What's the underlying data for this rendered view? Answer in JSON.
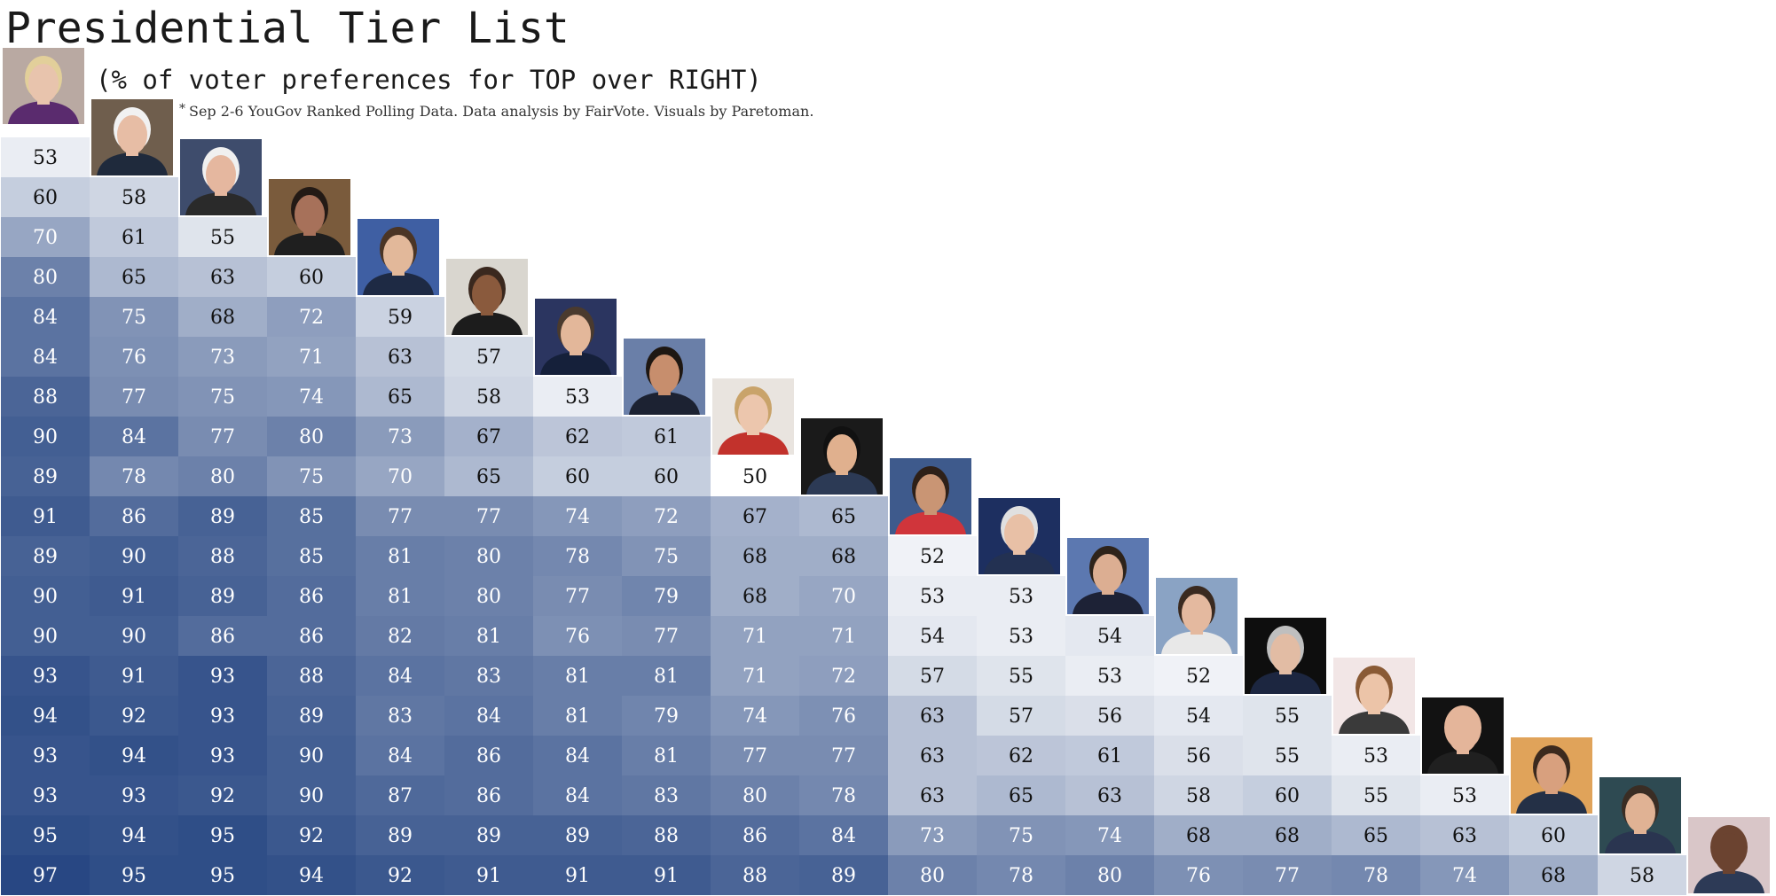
{
  "chart_data": {
    "type": "heatmap",
    "title": "Presidential Tier List",
    "subtitle": "(% of voter preferences for TOP over RIGHT)",
    "note": "Sep 2-6 YouGov Ranked Polling Data. Data analysis by FairVote. Visuals by Paretoman.",
    "note_marker": "*",
    "value_range": [
      50,
      100
    ],
    "color_scale": {
      "low": "#ffffff",
      "high": "#1c3d7c"
    },
    "label_colors": {
      "dark_bg": "#ffffff",
      "light_bg": "#111111"
    },
    "candidate_photos": [
      {
        "name": "candidate-1-photo",
        "bg": "#b9a9a2",
        "skin": "#e8c4ad",
        "hair": "#e2cf9a",
        "shirt": "#5a2b6e"
      },
      {
        "name": "candidate-2-photo",
        "bg": "#6f5e4d",
        "skin": "#e7bda5",
        "hair": "#f1f1f1",
        "shirt": "#1f2a3c"
      },
      {
        "name": "candidate-3-photo",
        "bg": "#3e4c6c",
        "skin": "#e5b79f",
        "hair": "#f0f0f0",
        "shirt": "#2a2a2a"
      },
      {
        "name": "candidate-4-photo",
        "bg": "#7a5b3c",
        "skin": "#a7715a",
        "hair": "#231a15",
        "shirt": "#1f1f1f"
      },
      {
        "name": "candidate-5-photo",
        "bg": "#3f5fa3",
        "skin": "#e2b89a",
        "hair": "#4b3525",
        "shirt": "#1e2a44"
      },
      {
        "name": "candidate-6-photo",
        "bg": "#d9d6cf",
        "skin": "#8a5a3d",
        "hair": "#3a281e",
        "shirt": "#1c1c1c"
      },
      {
        "name": "candidate-7-photo",
        "bg": "#2b3560",
        "skin": "#e3b79a",
        "hair": "#4a3a2e",
        "shirt": "#15203a"
      },
      {
        "name": "candidate-8-photo",
        "bg": "#6a7fa8",
        "skin": "#c78e6d",
        "hair": "#1e1712",
        "shirt": "#1c2232"
      },
      {
        "name": "candidate-9-photo",
        "bg": "#e9e4df",
        "skin": "#ecc6ad",
        "hair": "#c9a36a",
        "shirt": "#c2322c"
      },
      {
        "name": "candidate-10-photo",
        "bg": "#1a1a1a",
        "skin": "#e0b08e",
        "hair": "#111111",
        "shirt": "#2c3a55"
      },
      {
        "name": "candidate-11-photo",
        "bg": "#3e5a8c",
        "skin": "#c99574",
        "hair": "#2e2018",
        "shirt": "#d0353b"
      },
      {
        "name": "candidate-12-photo",
        "bg": "#1d2f60",
        "skin": "#e8c0a6",
        "hair": "#e0e0e0",
        "shirt": "#233152"
      },
      {
        "name": "candidate-13-photo",
        "bg": "#5c78b0",
        "skin": "#dcae92",
        "hair": "#2e231a",
        "shirt": "#1d2236"
      },
      {
        "name": "candidate-14-photo",
        "bg": "#8aa3c4",
        "skin": "#e4b99f",
        "hair": "#3a2a20",
        "shirt": "#e8e8e8"
      },
      {
        "name": "candidate-15-photo",
        "bg": "#0e0e0e",
        "skin": "#e2bca4",
        "hair": "#bfbfbf",
        "shirt": "#1c2640"
      },
      {
        "name": "candidate-16-photo",
        "bg": "#f2e6e6",
        "skin": "#ecc4a8",
        "hair": "#8a5a35",
        "shirt": "#3a3a3a"
      },
      {
        "name": "candidate-17-photo",
        "bg": "#121212",
        "skin": "#e4b59a",
        "hair": "#e4b59a",
        "shirt": "#202020"
      },
      {
        "name": "candidate-18-photo",
        "bg": "#e0a35a",
        "skin": "#d8a07e",
        "hair": "#3c2a1e",
        "shirt": "#243046"
      },
      {
        "name": "candidate-19-photo",
        "bg": "#2e4a52",
        "skin": "#e0b294",
        "hair": "#3a2d24",
        "shirt": "#2a3550"
      },
      {
        "name": "candidate-20-photo",
        "bg": "#d9c6c8",
        "skin": "#6b4330",
        "hair": "#6b4330",
        "shirt": "#2d3a56"
      }
    ],
    "rows": [
      [
        53
      ],
      [
        60,
        58
      ],
      [
        70,
        61,
        55
      ],
      [
        80,
        65,
        63,
        60
      ],
      [
        84,
        75,
        68,
        72,
        59
      ],
      [
        84,
        76,
        73,
        71,
        63,
        57
      ],
      [
        88,
        77,
        75,
        74,
        65,
        58,
        53
      ],
      [
        90,
        84,
        77,
        80,
        73,
        67,
        62,
        61
      ],
      [
        89,
        78,
        80,
        75,
        70,
        65,
        60,
        60,
        50
      ],
      [
        91,
        86,
        89,
        85,
        77,
        77,
        74,
        72,
        67,
        65
      ],
      [
        89,
        90,
        88,
        85,
        81,
        80,
        78,
        75,
        68,
        68,
        52
      ],
      [
        90,
        91,
        89,
        86,
        81,
        80,
        77,
        79,
        68,
        70,
        53,
        53
      ],
      [
        90,
        90,
        86,
        86,
        82,
        81,
        76,
        77,
        71,
        71,
        54,
        53,
        54
      ],
      [
        93,
        91,
        93,
        88,
        84,
        83,
        81,
        81,
        71,
        72,
        57,
        55,
        53,
        52
      ],
      [
        94,
        92,
        93,
        89,
        83,
        84,
        81,
        79,
        74,
        76,
        63,
        57,
        56,
        54,
        55
      ],
      [
        93,
        94,
        93,
        90,
        84,
        86,
        84,
        81,
        77,
        77,
        63,
        62,
        61,
        56,
        55,
        53
      ],
      [
        93,
        93,
        92,
        90,
        87,
        86,
        84,
        83,
        80,
        78,
        63,
        65,
        63,
        58,
        60,
        55,
        53
      ],
      [
        95,
        94,
        95,
        92,
        89,
        89,
        89,
        88,
        86,
        84,
        73,
        75,
        74,
        68,
        68,
        65,
        63,
        60
      ],
      [
        97,
        95,
        95,
        94,
        92,
        91,
        91,
        91,
        88,
        89,
        80,
        78,
        80,
        76,
        77,
        78,
        74,
        68,
        58
      ]
    ]
  }
}
